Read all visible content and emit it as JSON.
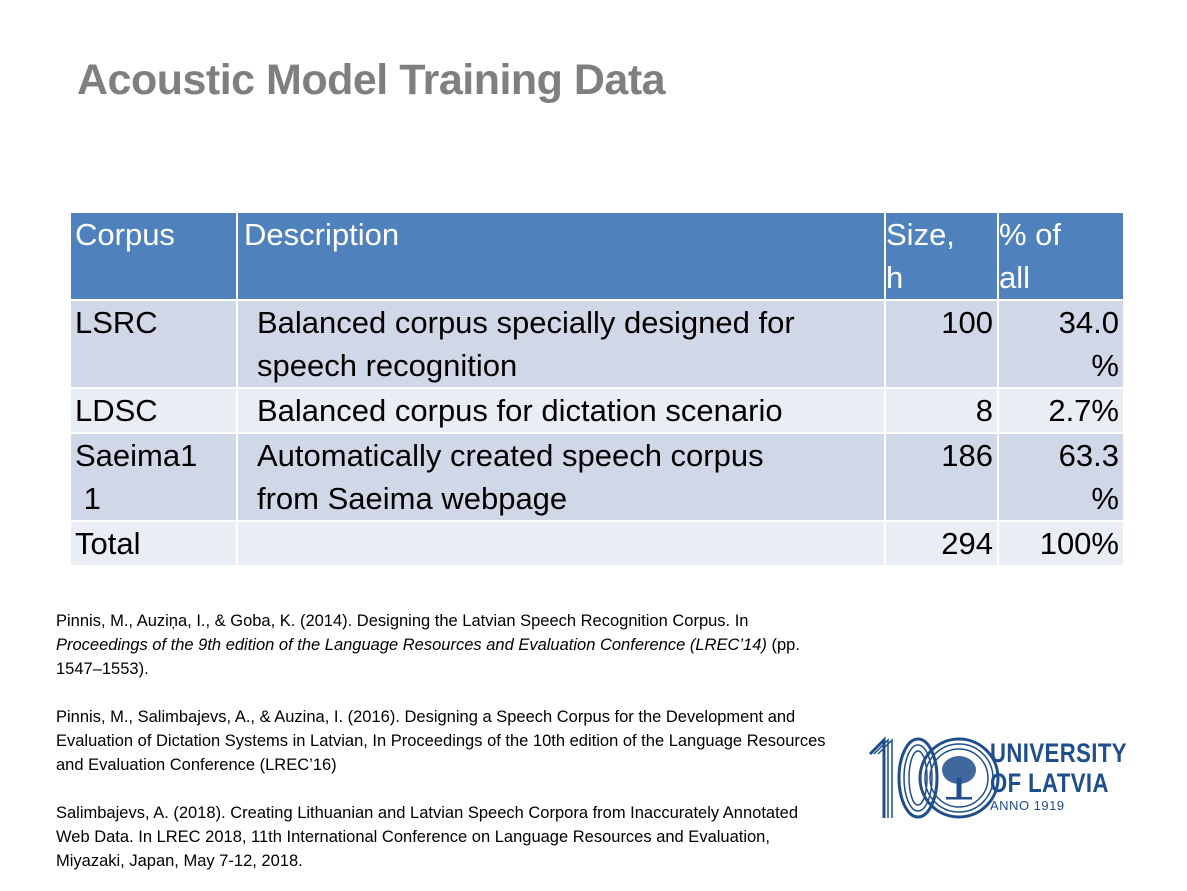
{
  "slide": {
    "title": "Acoustic Model Training Data"
  },
  "table": {
    "headers": {
      "corpus": "Corpus",
      "description": "Description",
      "size_line1": "Size,",
      "size_line2": "h",
      "pct_line1": "% of",
      "pct_line2": "all"
    },
    "rows": [
      {
        "corpus": [
          "LSRC"
        ],
        "description": [
          "Balanced corpus specially designed for",
          "speech recognition"
        ],
        "size": [
          "100"
        ],
        "pct": [
          "34.0",
          "%"
        ]
      },
      {
        "corpus": [
          "LDSC"
        ],
        "description": [
          "Balanced corpus for dictation scenario"
        ],
        "size": [
          "8"
        ],
        "pct": [
          "2.7%"
        ]
      },
      {
        "corpus": [
          "Saeima1",
          " 1"
        ],
        "description": [
          "Automatically created speech corpus",
          "from Saeima webpage"
        ],
        "size": [
          "186"
        ],
        "pct": [
          "63.3",
          "%"
        ]
      },
      {
        "corpus": [
          "Total"
        ],
        "description": [
          ""
        ],
        "size": [
          "294"
        ],
        "pct": [
          "100%"
        ]
      }
    ]
  },
  "references": [
    {
      "before": "Pinnis, M., Auziņa, I., & Goba, K. (2014). Designing the Latvian Speech Recognition Corpus. In ",
      "italic": "Proceedings of the 9th edition of the Language Resources and Evaluation Conference (LREC’14)",
      "after": " (pp. 1547–1553)."
    },
    {
      "before": "Pinnis, M., Salimbajevs, A., & Auzina, I. (2016). Designing a Speech Corpus for the Development and Evaluation of Dictation Systems in Latvian, In Proceedings of the 10th edition of the Language Resources and Evaluation Conference (LREC’16)",
      "italic": "",
      "after": ""
    },
    {
      "before": "Salimbajevs, A. (2018). Creating Lithuanian and Latvian Speech Corpora from Inaccurately Annotated Web Data. In LREC 2018, 11th International Conference on Language Resources and Evaluation, Miyazaki, Japan, May 7-12, 2018.",
      "italic": "",
      "after": ""
    }
  ],
  "logo": {
    "line1": "UNIVERSITY",
    "line2": "OF LATVIA",
    "anno": "ANNO 1919",
    "color": "#1f4e8c"
  },
  "colors": {
    "header_bg": "#4f81bd",
    "row_odd_bg": "#d0d8e8",
    "row_even_bg": "#e9edf4",
    "title": "#7f7f7f"
  }
}
